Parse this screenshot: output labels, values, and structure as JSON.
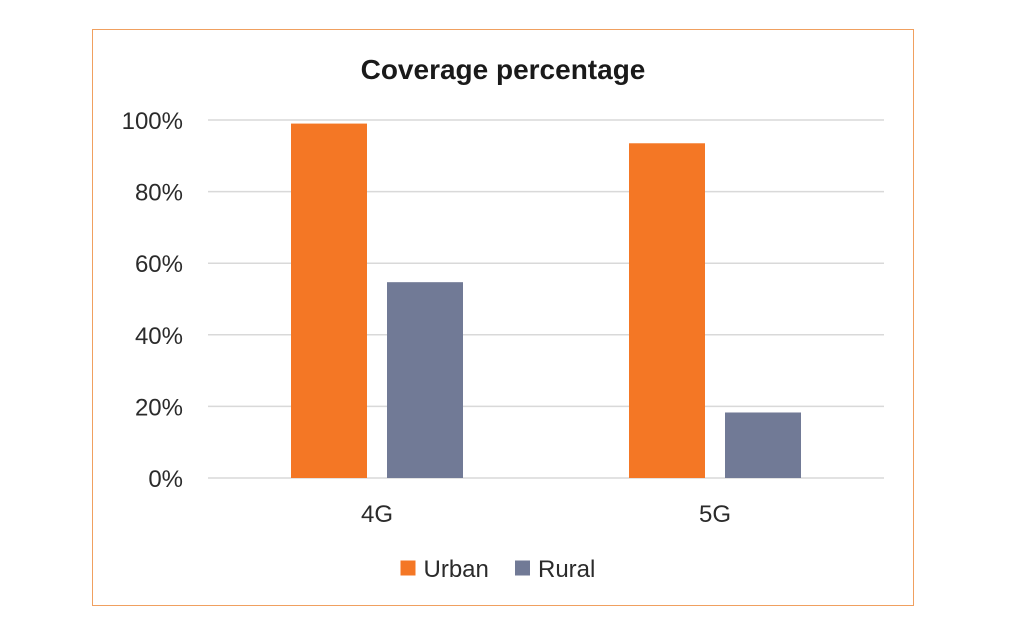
{
  "chart_data": {
    "type": "bar",
    "title": "Coverage percentage",
    "xlabel": "",
    "ylabel": "",
    "categories": [
      "4G",
      "5G"
    ],
    "series": [
      {
        "name": "Urban",
        "values": [
          0.99,
          0.935
        ],
        "color": "#f47725"
      },
      {
        "name": "Rural",
        "values": [
          0.547,
          0.183
        ],
        "color": "#717a96"
      }
    ],
    "ylim": [
      0,
      1
    ],
    "yticks": [
      {
        "value": 0,
        "label": "0%"
      },
      {
        "value": 0.2,
        "label": "20%"
      },
      {
        "value": 0.4,
        "label": "40%"
      },
      {
        "value": 0.6,
        "label": "60%"
      },
      {
        "value": 0.8,
        "label": "80%"
      },
      {
        "value": 1,
        "label": "100%"
      }
    ],
    "grid": true,
    "legend_position": "bottom",
    "frame_border_color": "#f0a060",
    "gridline_color": "#d9d9d9"
  }
}
